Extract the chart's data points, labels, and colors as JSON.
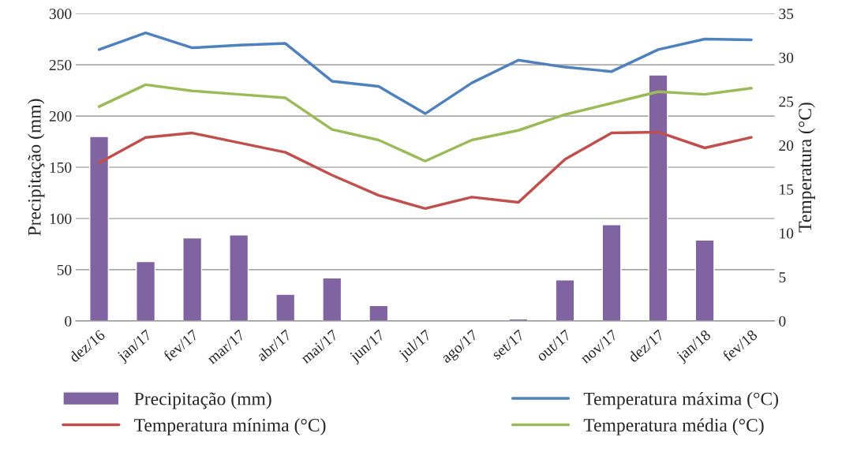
{
  "chart_data": {
    "type": "bar",
    "ylabel": "Precipitação (mm)",
    "y2label": "Temperatura (°C)",
    "categories": [
      "dez/16",
      "jan/17",
      "fev/17",
      "mar/17",
      "abr/17",
      "mai/17",
      "jun/17",
      "jul/17",
      "ago/17",
      "set/17",
      "out/17",
      "nov/17",
      "dez/17",
      "jan/18",
      "fev/18"
    ],
    "series": [
      {
        "name": "Precipitação (mm)",
        "color": "#8064a2",
        "values": [
          180,
          58,
          81,
          84,
          26,
          42,
          15,
          null,
          null,
          2,
          40,
          94,
          240,
          79,
          null
        ]
      },
      {
        "name": "Temperatura máxima (°C)",
        "type": "line",
        "axis": "y2",
        "color": "#4f81bd",
        "values": [
          30.9,
          32.8,
          31.1,
          31.4,
          31.6,
          27.3,
          26.7,
          23.6,
          27.1,
          29.7,
          28.9,
          28.4,
          30.9,
          32.1,
          32.0
        ]
      },
      {
        "name": "Temperatura mínima (°C)",
        "type": "line",
        "axis": "y2",
        "color": "#c0504d",
        "values": [
          18.0,
          20.9,
          21.4,
          20.3,
          19.2,
          16.6,
          14.3,
          12.8,
          14.1,
          13.5,
          18.4,
          21.4,
          21.5,
          19.7,
          20.9
        ]
      },
      {
        "name": "Temperatura média (°C)",
        "type": "line",
        "axis": "y2",
        "color": "#9bbb59",
        "values": [
          24.4,
          26.9,
          26.2,
          25.8,
          25.4,
          21.8,
          20.6,
          18.2,
          20.6,
          21.7,
          23.5,
          24.8,
          26.1,
          25.8,
          26.5
        ]
      }
    ],
    "ylim": [
      0,
      300
    ],
    "yticks": [
      0,
      50,
      100,
      150,
      200,
      250,
      300
    ],
    "y2lim": [
      0,
      35
    ],
    "y2ticks": [
      0,
      5,
      10,
      15,
      20,
      25,
      30,
      35
    ],
    "grid": "y",
    "legend": "bottom",
    "marker": "none",
    "line_style": "solid"
  }
}
